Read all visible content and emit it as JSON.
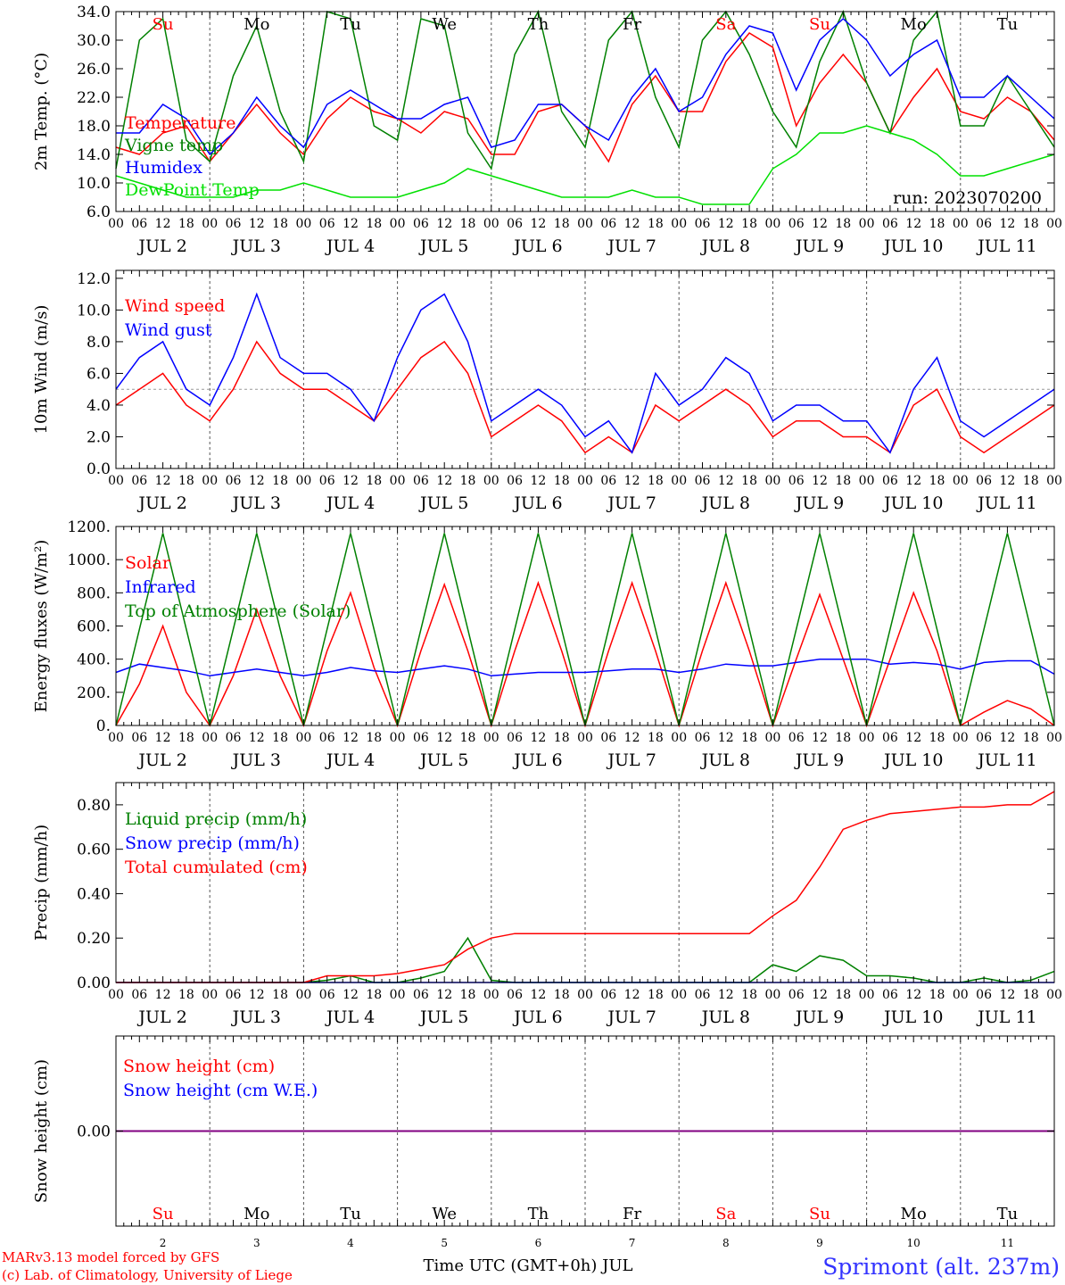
{
  "run_label": "run: 2023070200",
  "footer": {
    "credit_line1": "MARv3.13 model forced by GFS",
    "credit_line2": "(c) Lab. of Climatology, University of Liege",
    "x_title": "Time UTC (GMT+0h) JUL",
    "station": "Sprimont (alt. 237m)"
  },
  "colors": {
    "red": "#ff0000",
    "blue": "#0000ff",
    "green": "#008000",
    "light_green": "#00e000",
    "purple": "#800080",
    "axis": "#000000",
    "grid": "#555555"
  },
  "days": {
    "weekday": [
      "Su",
      "Mo",
      "Tu",
      "We",
      "Th",
      "Fr",
      "Sa",
      "Su",
      "Mo",
      "Tu"
    ],
    "weekend": [
      true,
      false,
      false,
      false,
      false,
      false,
      true,
      true,
      false,
      false
    ],
    "date_label": [
      "JUL  2",
      "JUL  3",
      "JUL  4",
      "JUL  5",
      "JUL  6",
      "JUL  7",
      "JUL  8",
      "JUL  9",
      "JUL 10",
      "JUL 11"
    ],
    "day_number": [
      "2",
      "3",
      "4",
      "5",
      "6",
      "7",
      "8",
      "9",
      "10",
      "11"
    ]
  },
  "hour_ticks": [
    "00",
    "06",
    "12",
    "18"
  ],
  "chart_data": [
    {
      "type": "line",
      "id": "temperature",
      "ylabel": "2m Temp. (°C)",
      "ylim": [
        6,
        34
      ],
      "yticks": [
        "6.0",
        "10.0",
        "14.0",
        "18.0",
        "22.0",
        "26.0",
        "30.0",
        "34.0"
      ],
      "x_hours": [
        0,
        6,
        12,
        18,
        24,
        30,
        36,
        42,
        48,
        54,
        60,
        66,
        72,
        78,
        84,
        90,
        96,
        102,
        108,
        114,
        120,
        126,
        132,
        138,
        144,
        150,
        156,
        162,
        168,
        174,
        180,
        186,
        192,
        198,
        204,
        210,
        216,
        222,
        228,
        234,
        240
      ],
      "series": [
        {
          "name": "Temperature",
          "color": "#ff0000",
          "values": [
            15,
            14,
            17,
            18,
            13,
            17,
            21,
            17,
            14,
            19,
            22,
            20,
            19,
            17,
            20,
            19,
            14,
            14,
            20,
            21,
            18,
            13,
            21,
            25,
            20,
            20,
            27,
            31,
            29,
            18,
            24,
            28,
            24,
            17,
            22,
            26,
            20,
            19,
            22,
            20,
            16
          ]
        },
        {
          "name": "Vigne temp",
          "color": "#008000",
          "values": [
            12,
            30,
            33,
            16,
            13,
            25,
            32,
            20,
            13,
            34,
            33,
            18,
            16,
            33,
            32,
            17,
            12,
            28,
            34,
            20,
            15,
            30,
            34,
            22,
            15,
            30,
            34,
            28,
            20,
            15,
            27,
            34,
            24,
            17,
            30,
            34,
            18,
            18,
            25,
            20,
            15
          ]
        },
        {
          "name": "Humidex",
          "color": "#0000ff",
          "values": [
            17,
            17,
            21,
            19,
            14,
            17,
            22,
            18,
            15,
            21,
            23,
            21,
            19,
            19,
            21,
            22,
            15,
            16,
            21,
            21,
            18,
            16,
            22,
            26,
            20,
            22,
            28,
            32,
            31,
            23,
            30,
            33,
            30,
            25,
            28,
            30,
            22,
            22,
            25,
            22,
            19
          ]
        },
        {
          "name": "DewPoint Temp",
          "color": "#00e000",
          "values": [
            11,
            10,
            9,
            8,
            8,
            8,
            9,
            9,
            10,
            9,
            8,
            8,
            8,
            9,
            10,
            12,
            11,
            10,
            9,
            8,
            8,
            8,
            9,
            8,
            8,
            7,
            7,
            7,
            12,
            14,
            17,
            17,
            18,
            17,
            16,
            14,
            11,
            11,
            12,
            13,
            14
          ]
        }
      ]
    },
    {
      "type": "line",
      "id": "wind",
      "ylabel": "10m Wind (m/s)",
      "ylim": [
        0,
        12.5
      ],
      "yticks": [
        "0.0",
        "2.0",
        "4.0",
        "6.0",
        "8.0",
        "10.0",
        "12.0"
      ],
      "reference_line": 5,
      "x_hours": [
        0,
        6,
        12,
        18,
        24,
        30,
        36,
        42,
        48,
        54,
        60,
        66,
        72,
        78,
        84,
        90,
        96,
        102,
        108,
        114,
        120,
        126,
        132,
        138,
        144,
        150,
        156,
        162,
        168,
        174,
        180,
        186,
        192,
        198,
        204,
        210,
        216,
        222,
        228,
        234,
        240
      ],
      "series": [
        {
          "name": "Wind speed",
          "color": "#ff0000",
          "values": [
            4,
            5,
            6,
            4,
            3,
            5,
            8,
            6,
            5,
            5,
            4,
            3,
            5,
            7,
            8,
            6,
            2,
            3,
            4,
            3,
            1,
            2,
            1,
            4,
            3,
            4,
            5,
            4,
            2,
            3,
            3,
            2,
            2,
            1,
            4,
            5,
            2,
            1,
            2,
            3,
            4
          ]
        },
        {
          "name": "Wind gust",
          "color": "#0000ff",
          "values": [
            5,
            7,
            8,
            5,
            4,
            7,
            11,
            7,
            6,
            6,
            5,
            3,
            7,
            10,
            11,
            8,
            3,
            4,
            5,
            4,
            2,
            3,
            1,
            6,
            4,
            5,
            7,
            6,
            3,
            4,
            4,
            3,
            3,
            1,
            5,
            7,
            3,
            2,
            3,
            4,
            5
          ]
        }
      ]
    },
    {
      "type": "line",
      "id": "fluxes",
      "ylabel": "Energy fluxes (W/m²)",
      "ylim": [
        0,
        1200
      ],
      "yticks": [
        "0.",
        "200.",
        "400.",
        "600.",
        "800.",
        "1000.",
        "1200."
      ],
      "x_hours": [
        0,
        6,
        12,
        18,
        24,
        30,
        36,
        42,
        48,
        54,
        60,
        66,
        72,
        78,
        84,
        90,
        96,
        102,
        108,
        114,
        120,
        126,
        132,
        138,
        144,
        150,
        156,
        162,
        168,
        174,
        180,
        186,
        192,
        198,
        204,
        210,
        216,
        222,
        228,
        234,
        240
      ],
      "series": [
        {
          "name": "Solar",
          "color": "#ff0000",
          "values": [
            0,
            250,
            600,
            200,
            0,
            300,
            700,
            300,
            0,
            450,
            800,
            350,
            0,
            450,
            850,
            450,
            0,
            450,
            860,
            450,
            0,
            450,
            860,
            450,
            0,
            450,
            860,
            450,
            0,
            400,
            790,
            400,
            0,
            400,
            800,
            450,
            0,
            80,
            150,
            100,
            0
          ]
        },
        {
          "name": "Infrared",
          "color": "#0000ff",
          "values": [
            320,
            370,
            350,
            330,
            300,
            320,
            340,
            320,
            300,
            320,
            350,
            330,
            320,
            340,
            360,
            340,
            300,
            310,
            320,
            320,
            320,
            330,
            340,
            340,
            320,
            340,
            370,
            360,
            360,
            380,
            400,
            400,
            400,
            370,
            380,
            370,
            340,
            380,
            390,
            390,
            310
          ]
        },
        {
          "name": "Top of Atmosphere (Solar)",
          "color": "#008000",
          "values": [
            0,
            580,
            1160,
            580,
            0,
            580,
            1160,
            580,
            0,
            580,
            1160,
            580,
            0,
            580,
            1160,
            580,
            0,
            580,
            1160,
            580,
            0,
            580,
            1160,
            580,
            0,
            580,
            1160,
            580,
            0,
            580,
            1160,
            580,
            0,
            580,
            1160,
            580,
            0,
            580,
            1160,
            580,
            0
          ]
        }
      ]
    },
    {
      "type": "line",
      "id": "precip",
      "ylabel": "Precip (mm/h)",
      "ylim": [
        0,
        0.9
      ],
      "yticks": [
        "0.00",
        "0.20",
        "0.40",
        "0.60",
        "0.80"
      ],
      "x_hours": [
        0,
        6,
        12,
        18,
        24,
        30,
        36,
        42,
        48,
        54,
        60,
        66,
        72,
        78,
        84,
        90,
        96,
        102,
        108,
        114,
        120,
        126,
        132,
        138,
        144,
        150,
        156,
        162,
        168,
        174,
        180,
        186,
        192,
        198,
        204,
        210,
        216,
        222,
        228,
        234,
        240
      ],
      "series": [
        {
          "name": "Liquid precip (mm/h)",
          "color": "#008000",
          "values": [
            0,
            0,
            0,
            0,
            0,
            0,
            0,
            0,
            0,
            0.01,
            0.03,
            0,
            0,
            0.02,
            0.05,
            0.2,
            0.01,
            0,
            0,
            0,
            0,
            0,
            0,
            0,
            0,
            0,
            0,
            0,
            0.08,
            0.05,
            0.12,
            0.1,
            0.03,
            0.03,
            0.02,
            0,
            0,
            0.02,
            0,
            0.01,
            0.05
          ]
        },
        {
          "name": "Snow precip (mm/h)",
          "color": "#0000ff",
          "values": [
            0,
            0,
            0,
            0,
            0,
            0,
            0,
            0,
            0,
            0,
            0,
            0,
            0,
            0,
            0,
            0,
            0,
            0,
            0,
            0,
            0,
            0,
            0,
            0,
            0,
            0,
            0,
            0,
            0,
            0,
            0,
            0,
            0,
            0,
            0,
            0,
            0,
            0,
            0,
            0,
            0
          ]
        },
        {
          "name": "Total cumulated (cm)",
          "color": "#ff0000",
          "values": [
            0,
            0,
            0,
            0,
            0,
            0,
            0,
            0,
            0,
            0.03,
            0.03,
            0.03,
            0.04,
            0.06,
            0.08,
            0.15,
            0.2,
            0.22,
            0.22,
            0.22,
            0.22,
            0.22,
            0.22,
            0.22,
            0.22,
            0.22,
            0.22,
            0.22,
            0.3,
            0.37,
            0.52,
            0.69,
            0.73,
            0.76,
            0.77,
            0.78,
            0.79,
            0.79,
            0.8,
            0.8,
            0.86
          ]
        }
      ]
    },
    {
      "type": "line",
      "id": "snow",
      "ylabel": "Snow height (cm)",
      "ylim": [
        -1,
        1
      ],
      "yticks": [
        "0.00"
      ],
      "x_hours": [
        0,
        240
      ],
      "series": [
        {
          "name": "Snow height (cm)",
          "color": "#ff0000",
          "values": [
            0,
            0
          ]
        },
        {
          "name": "Snow height (cm W.E.)",
          "color": "#0000ff",
          "values": [
            0,
            0
          ]
        }
      ]
    }
  ]
}
